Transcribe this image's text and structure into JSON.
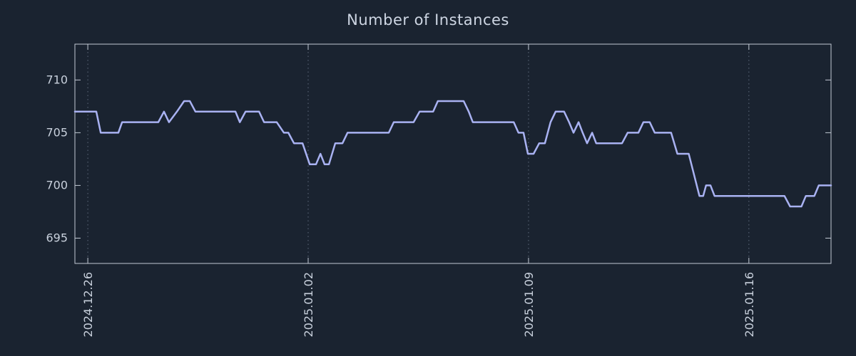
{
  "colors": {
    "background": "#1a2330",
    "title_text": "#cdd5e2",
    "tick_text": "#c8d0dc",
    "axis": "#c2c9d4",
    "grid": "#5f6a7c",
    "line": "#a9b2f2"
  },
  "chart_data": {
    "type": "line",
    "title": "Number of Instances",
    "xlabel": "",
    "ylabel": "",
    "x_unit": "days since 2024.12.26",
    "xlim": [
      -0.41,
      23.61
    ],
    "ylim": [
      692.6,
      713.4
    ],
    "yticks": [
      695,
      700,
      705,
      710
    ],
    "xticks": [
      {
        "label": "2024.12.26",
        "x": 0
      },
      {
        "label": "2025.01.02",
        "x": 7
      },
      {
        "label": "2025.01.09",
        "x": 14
      },
      {
        "label": "2025.01.16",
        "x": 21
      }
    ],
    "grid": "vertical-dotted",
    "legend": "none",
    "series": [
      {
        "name": "instances",
        "color": "#a9b2f2",
        "points": [
          [
            -0.41,
            707
          ],
          [
            0.27,
            707
          ],
          [
            0.41,
            705
          ],
          [
            0.97,
            705
          ],
          [
            1.09,
            706
          ],
          [
            2.24,
            706
          ],
          [
            2.42,
            707
          ],
          [
            2.58,
            706
          ],
          [
            2.83,
            707
          ],
          [
            3.06,
            708
          ],
          [
            3.24,
            708
          ],
          [
            3.42,
            707
          ],
          [
            4.69,
            707
          ],
          [
            4.83,
            706
          ],
          [
            5.01,
            707
          ],
          [
            5.44,
            707
          ],
          [
            5.6,
            706
          ],
          [
            6.0,
            706
          ],
          [
            6.23,
            705
          ],
          [
            6.37,
            705
          ],
          [
            6.55,
            704
          ],
          [
            6.82,
            704
          ],
          [
            7.05,
            702
          ],
          [
            7.25,
            702
          ],
          [
            7.39,
            703
          ],
          [
            7.52,
            702
          ],
          [
            7.66,
            702
          ],
          [
            7.86,
            704
          ],
          [
            8.09,
            704
          ],
          [
            8.25,
            705
          ],
          [
            9.56,
            705
          ],
          [
            9.72,
            706
          ],
          [
            10.35,
            706
          ],
          [
            10.54,
            707
          ],
          [
            10.97,
            707
          ],
          [
            11.12,
            708
          ],
          [
            11.94,
            708
          ],
          [
            12.1,
            707
          ],
          [
            12.23,
            706
          ],
          [
            13.53,
            706
          ],
          [
            13.68,
            705
          ],
          [
            13.84,
            705
          ],
          [
            13.98,
            703
          ],
          [
            14.16,
            703
          ],
          [
            14.34,
            704
          ],
          [
            14.52,
            704
          ],
          [
            14.7,
            706
          ],
          [
            14.86,
            707
          ],
          [
            15.13,
            707
          ],
          [
            15.29,
            706
          ],
          [
            15.43,
            705
          ],
          [
            15.59,
            706
          ],
          [
            15.72,
            705
          ],
          [
            15.86,
            704
          ],
          [
            16.02,
            705
          ],
          [
            16.15,
            704
          ],
          [
            16.97,
            704
          ],
          [
            17.15,
            705
          ],
          [
            17.49,
            705
          ],
          [
            17.65,
            706
          ],
          [
            17.85,
            706
          ],
          [
            18.01,
            705
          ],
          [
            18.53,
            705
          ],
          [
            18.73,
            703
          ],
          [
            19.09,
            703
          ],
          [
            19.43,
            699
          ],
          [
            19.55,
            699
          ],
          [
            19.64,
            700
          ],
          [
            19.78,
            700
          ],
          [
            19.91,
            699
          ],
          [
            22.13,
            699
          ],
          [
            22.31,
            698
          ],
          [
            22.67,
            698
          ],
          [
            22.81,
            699
          ],
          [
            23.08,
            699
          ],
          [
            23.22,
            700
          ],
          [
            23.61,
            700
          ]
        ]
      }
    ]
  }
}
